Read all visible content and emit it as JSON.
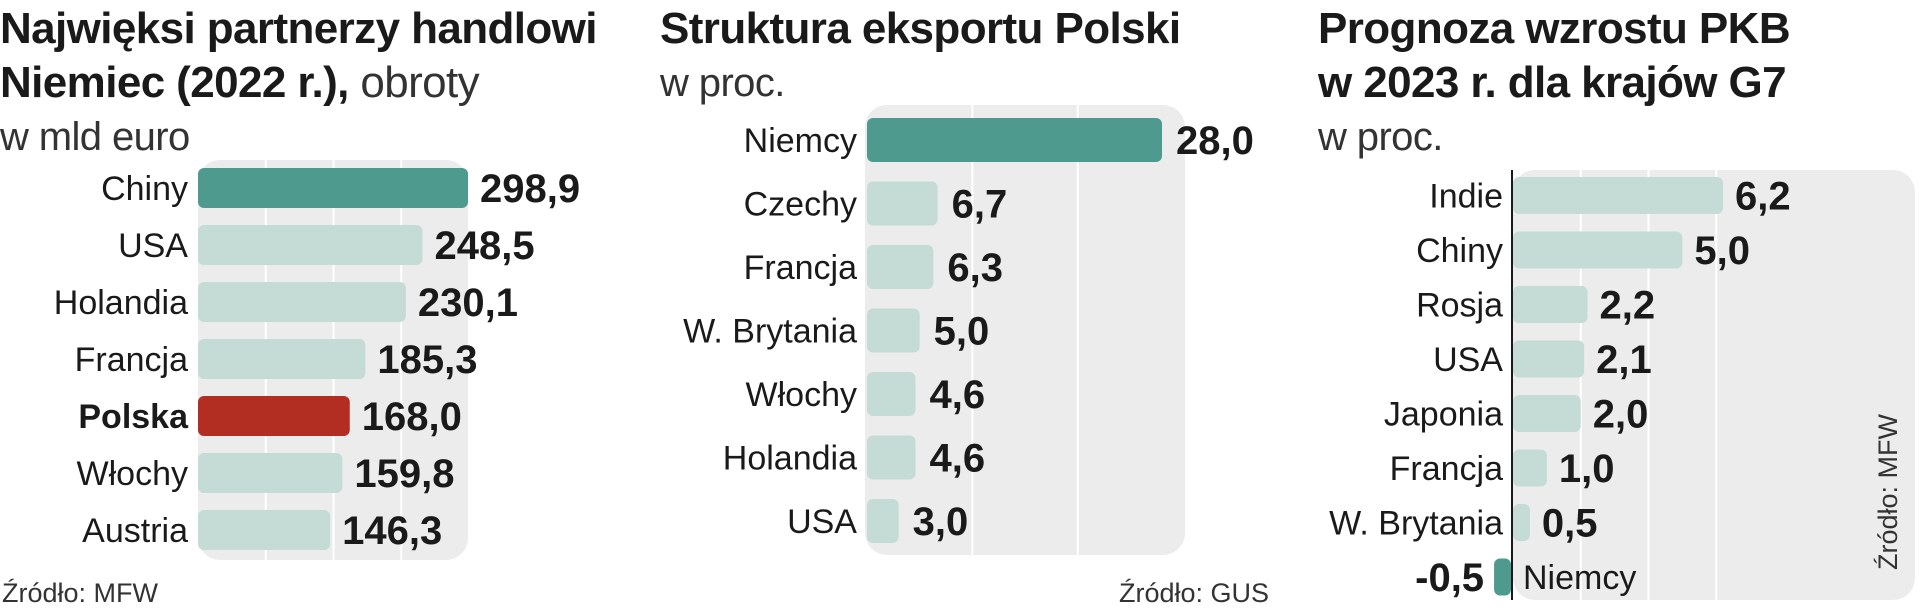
{
  "colors": {
    "accent": "#4e9a8e",
    "light": "#c4dcd5",
    "highlight": "#b22d22",
    "panel_bg": "#ececec",
    "gridline": "#ffffff",
    "axis": "#1a1a1a"
  },
  "chart_data": [
    {
      "type": "bar",
      "orientation": "horizontal",
      "title": "Najwięksi partnerzy handlowi Niemiec (2022 r.), obroty w mld euro",
      "title_lines": [
        "Najwięksi partnerzy handlowi",
        "Niemiec (2022 r.),",
        "w mld euro"
      ],
      "title_regular": [
        "",
        "obroty",
        ""
      ],
      "categories": [
        "Chiny",
        "USA",
        "Holandia",
        "Francja",
        "Polska",
        "Włochy",
        "Austria"
      ],
      "values": [
        298.9,
        248.5,
        230.1,
        185.3,
        168.0,
        159.8,
        146.3
      ],
      "value_labels": [
        "298,9",
        "248,5",
        "230,1",
        "185,3",
        "168,0",
        "159,8",
        "146,3"
      ],
      "bar_colors": [
        "accent",
        "light",
        "light",
        "light",
        "highlight",
        "light",
        "light"
      ],
      "bold_categories": [
        "Polska"
      ],
      "xlim": [
        0,
        300
      ],
      "grid_step": 75,
      "source": "Źródło: MFW"
    },
    {
      "type": "bar",
      "orientation": "horizontal",
      "title": "Struktura eksportu Polski w proc.",
      "title_lines": [
        "Struktura eksportu Polski",
        "w proc."
      ],
      "title_regular": [
        "",
        ""
      ],
      "categories": [
        "Niemcy",
        "Czechy",
        "Francja",
        "W. Brytania",
        "Włochy",
        "Holandia",
        "USA"
      ],
      "values": [
        28.0,
        6.7,
        6.3,
        5.0,
        4.6,
        4.6,
        3.0
      ],
      "value_labels": [
        "28,0",
        "6,7",
        "6,3",
        "5,0",
        "4,6",
        "4,6",
        "3,0"
      ],
      "bar_colors": [
        "accent",
        "light",
        "light",
        "light",
        "light",
        "light",
        "light"
      ],
      "bold_categories": [],
      "xlim": [
        0,
        28
      ],
      "grid_step": 10,
      "source": "Źródło: GUS"
    },
    {
      "type": "bar",
      "orientation": "horizontal",
      "title": "Prognoza wzrostu PKB w 2023 r. dla krajów G7 w proc.",
      "title_lines": [
        "Prognoza wzrostu PKB",
        "w 2023 r. dla krajów G7",
        "w proc."
      ],
      "title_regular": [
        "",
        "",
        ""
      ],
      "categories": [
        "Indie",
        "Chiny",
        "Rosja",
        "USA",
        "Japonia",
        "Francja",
        "W. Brytania",
        "Niemcy"
      ],
      "values": [
        6.2,
        5.0,
        2.2,
        2.1,
        2.0,
        1.0,
        0.5,
        -0.5
      ],
      "value_labels": [
        "6,2",
        "5,0",
        "2,2",
        "2,1",
        "2,0",
        "1,0",
        "0,5",
        "-0,5"
      ],
      "bar_colors": [
        "light",
        "light",
        "light",
        "light",
        "light",
        "light",
        "light",
        "accent"
      ],
      "bold_categories": [],
      "xlim": [
        -0.5,
        6.2
      ],
      "grid_step": 2,
      "zero_axis": true,
      "source": "Źródło: MFW"
    }
  ]
}
